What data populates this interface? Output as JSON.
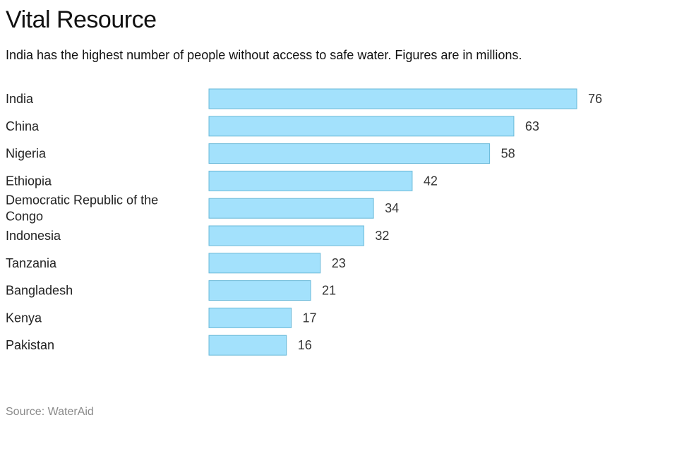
{
  "header": {
    "title": "Vital Resource",
    "subtitle": "India has the highest number of people without access to safe water. Figures are in millions."
  },
  "footer": {
    "source": "Source: WaterAid"
  },
  "colors": {
    "bar_fill": "#a3e1fc",
    "bar_stroke": "#6ab9d8"
  },
  "chart_data": {
    "type": "bar",
    "orientation": "horizontal",
    "categories": [
      "India",
      "China",
      "Nigeria",
      "Ethiopia",
      "Democratic Republic of the Congo",
      "Indonesia",
      "Tanzania",
      "Bangladesh",
      "Kenya",
      "Pakistan"
    ],
    "category_lines": [
      [
        "India"
      ],
      [
        "China"
      ],
      [
        "Nigeria"
      ],
      [
        "Ethiopia"
      ],
      [
        "Democratic Republic of the",
        "Congo"
      ],
      [
        "Indonesia"
      ],
      [
        "Tanzania"
      ],
      [
        "Bangladesh"
      ],
      [
        "Kenya"
      ],
      [
        "Pakistan"
      ]
    ],
    "values": [
      76,
      63,
      58,
      42,
      34,
      32,
      23,
      21,
      17,
      16
    ],
    "value_labels": [
      "76",
      "63",
      "58",
      "42",
      "34",
      "32",
      "23",
      "21",
      "17",
      "16"
    ],
    "title": "Vital Resource",
    "subtitle": "India has the highest number of people without access to safe water. Figures are in millions.",
    "xlabel": "",
    "ylabel": "",
    "xlim": [
      0,
      76
    ],
    "grid": false,
    "legend": "none"
  }
}
